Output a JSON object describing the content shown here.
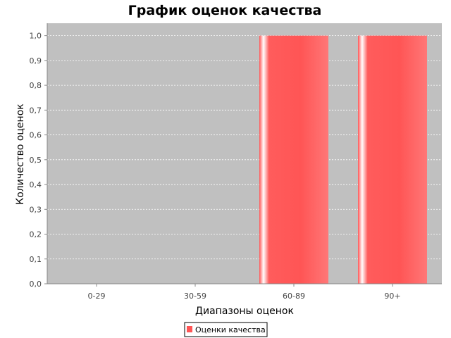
{
  "chart_data": {
    "type": "bar",
    "title": "График оценок качества",
    "xlabel": "Диапазоны оценок",
    "ylabel": "Количество оценок",
    "categories": [
      "0-29",
      "30-59",
      "60-89",
      "90+"
    ],
    "series": [
      {
        "name": "Оценки качества",
        "values": [
          0,
          0,
          1,
          1
        ]
      }
    ],
    "ylim": [
      0,
      1.05
    ],
    "yticks": [
      "0,0",
      "0,1",
      "0,2",
      "0,3",
      "0,4",
      "0,5",
      "0,6",
      "0,7",
      "0,8",
      "0,9",
      "1,0"
    ],
    "grid": true,
    "legend": "bottom-center",
    "colors": {
      "plot_background": "#c0c0c0",
      "bar": "#ff5555",
      "grid": "#ffffff"
    }
  }
}
